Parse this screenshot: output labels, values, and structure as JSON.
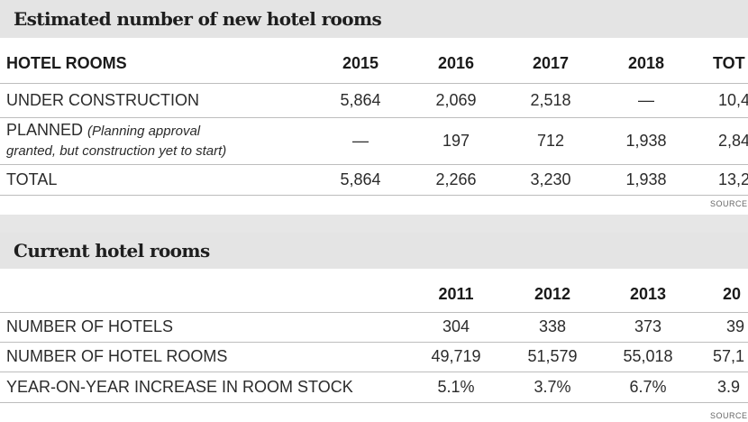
{
  "new_rooms": {
    "title": "Estimated number of new hotel rooms",
    "header": [
      "HOTEL ROOMS",
      "2015",
      "2016",
      "2017",
      "2018",
      "TOT"
    ],
    "rows": [
      {
        "label": "UNDER CONSTRUCTION",
        "values": [
          "5,864",
          "2,069",
          "2,518",
          "—",
          "10,4"
        ]
      },
      {
        "label": "PLANNED",
        "label_note_1": "(Planning approval",
        "label_note_2": "granted, but construction yet to start)",
        "values": [
          "—",
          "197",
          "712",
          "1,938",
          "2,84"
        ]
      },
      {
        "label": "TOTAL",
        "values": [
          "5,864",
          "2,266",
          "3,230",
          "1,938",
          "13,2"
        ]
      }
    ],
    "source": "SOURCE"
  },
  "current_rooms": {
    "title": "Current hotel rooms",
    "header": [
      "2011",
      "2012",
      "2013",
      "20"
    ],
    "rows": [
      {
        "label": "NUMBER OF HOTELS",
        "values": [
          "304",
          "338",
          "373",
          "39"
        ]
      },
      {
        "label": "NUMBER OF HOTEL ROOMS",
        "values": [
          "49,719",
          "51,579",
          "55,018",
          "57,1"
        ]
      },
      {
        "label": "YEAR-ON-YEAR INCREASE IN ROOM STOCK",
        "values": [
          "5.1%",
          "3.7%",
          "6.7%",
          "3.9"
        ]
      }
    ],
    "source": "SOURCE"
  }
}
